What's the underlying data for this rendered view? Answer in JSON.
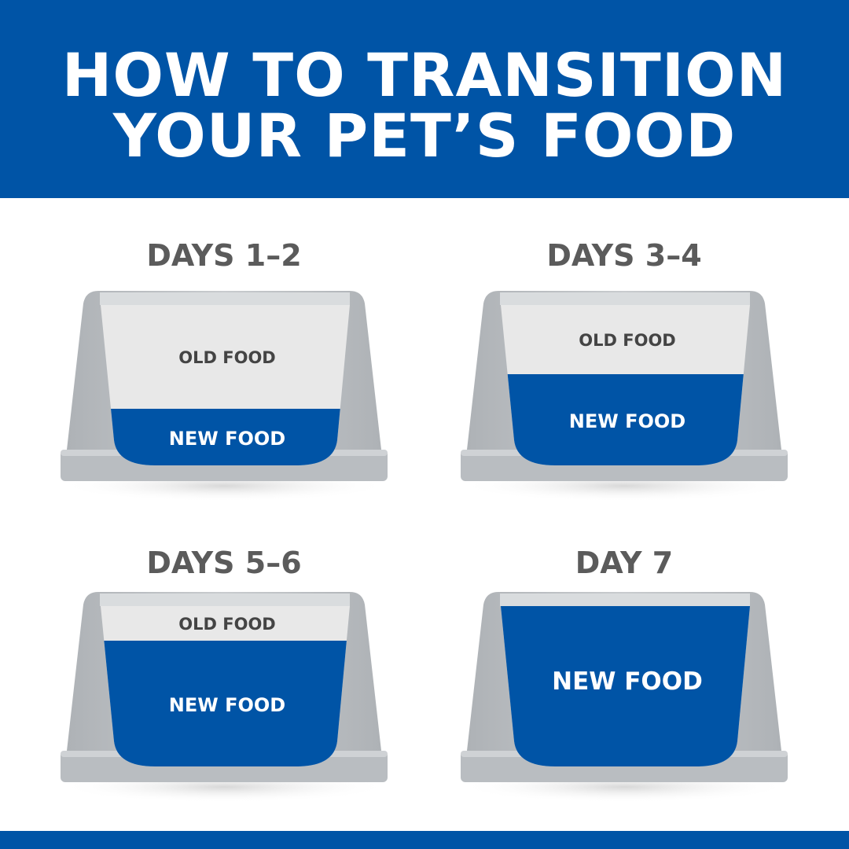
{
  "header": {
    "title_line1": "HOW TO TRANSITION",
    "title_line2": "YOUR PET’S FOOD"
  },
  "colors": {
    "brand_blue": "#0054a6",
    "bowl_gray": "#bcc0c4",
    "old_food": "#e8e8e8",
    "heading_gray": "#5b5b5b"
  },
  "stages": [
    {
      "title": "DAYS 1–2",
      "old_label": "OLD FOOD",
      "new_label": "NEW FOOD",
      "new_fraction": 0.25
    },
    {
      "title": "DAYS 3–4",
      "old_label": "OLD FOOD",
      "new_label": "NEW FOOD",
      "new_fraction": 0.5
    },
    {
      "title": "DAYS 5–6",
      "old_label": "OLD FOOD",
      "new_label": "NEW FOOD",
      "new_fraction": 0.75
    },
    {
      "title": "DAY 7",
      "new_label": "NEW FOOD",
      "new_fraction": 1.0
    }
  ]
}
